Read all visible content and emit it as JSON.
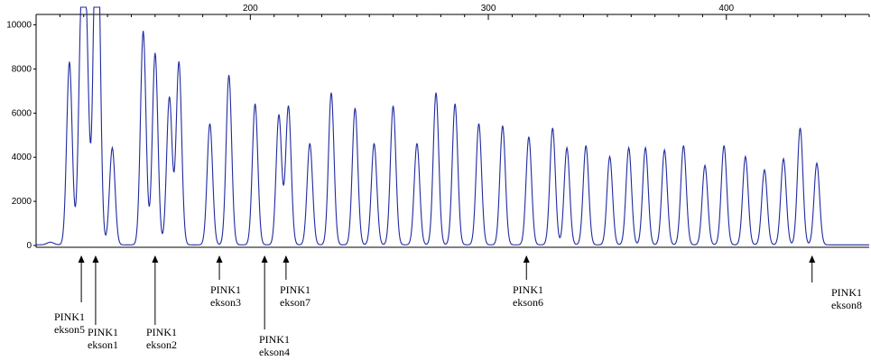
{
  "chart_data": {
    "type": "line",
    "title": "",
    "xlabel": "",
    "ylabel": "",
    "x_ticks": [
      200,
      300,
      400
    ],
    "y_ticks": [
      0,
      2000,
      4000,
      6000,
      8000,
      10000
    ],
    "y_tick_labels": [
      "0",
      "2000",
      "4000",
      "6000",
      "8000",
      "10000"
    ],
    "xlim": [
      110,
      460
    ],
    "ylim": [
      0,
      10800
    ],
    "grid": false,
    "series": [
      {
        "color": "#1f2aa0",
        "peaks": [
          [
            124,
            8300
          ],
          [
            129,
            9900
          ],
          [
            131,
            9300
          ],
          [
            135,
            10100
          ],
          [
            136,
            9800
          ],
          [
            142,
            4400
          ],
          [
            155,
            9700
          ],
          [
            160,
            8700
          ],
          [
            166,
            6700
          ],
          [
            170,
            8300
          ],
          [
            183,
            5500
          ],
          [
            191,
            7700
          ],
          [
            202,
            6400
          ],
          [
            212,
            5900
          ],
          [
            216,
            6300
          ],
          [
            225,
            4600
          ],
          [
            234,
            6900
          ],
          [
            244,
            6200
          ],
          [
            252,
            4600
          ],
          [
            260,
            6300
          ],
          [
            270,
            4600
          ],
          [
            278,
            6900
          ],
          [
            286,
            6400
          ],
          [
            296,
            5500
          ],
          [
            306,
            5400
          ],
          [
            317,
            4900
          ],
          [
            327,
            5300
          ],
          [
            333,
            4400
          ],
          [
            341,
            4500
          ],
          [
            351,
            4000
          ],
          [
            359,
            4400
          ],
          [
            366,
            4400
          ],
          [
            374,
            4300
          ],
          [
            382,
            4500
          ],
          [
            391,
            3600
          ],
          [
            399,
            4500
          ],
          [
            408,
            4000
          ],
          [
            416,
            3400
          ],
          [
            424,
            3900
          ],
          [
            431,
            5300
          ],
          [
            438,
            3700
          ]
        ]
      }
    ],
    "annotations": [
      {
        "label": "PINK1",
        "sub": "ekson5",
        "x": 129
      },
      {
        "label": "PINK1",
        "sub": "ekson1",
        "x": 135
      },
      {
        "label": "PINK1",
        "sub": "ekson2",
        "x": 160
      },
      {
        "label": "PINK1",
        "sub": "ekson3",
        "x": 187
      },
      {
        "label": "PINK1",
        "sub": "ekson4",
        "x": 206
      },
      {
        "label": "PINK1",
        "sub": "ekson7",
        "x": 215
      },
      {
        "label": "PINK1",
        "sub": "ekson6",
        "x": 316
      },
      {
        "label": "PINK1",
        "sub": "ekson8",
        "x": 436
      }
    ]
  }
}
